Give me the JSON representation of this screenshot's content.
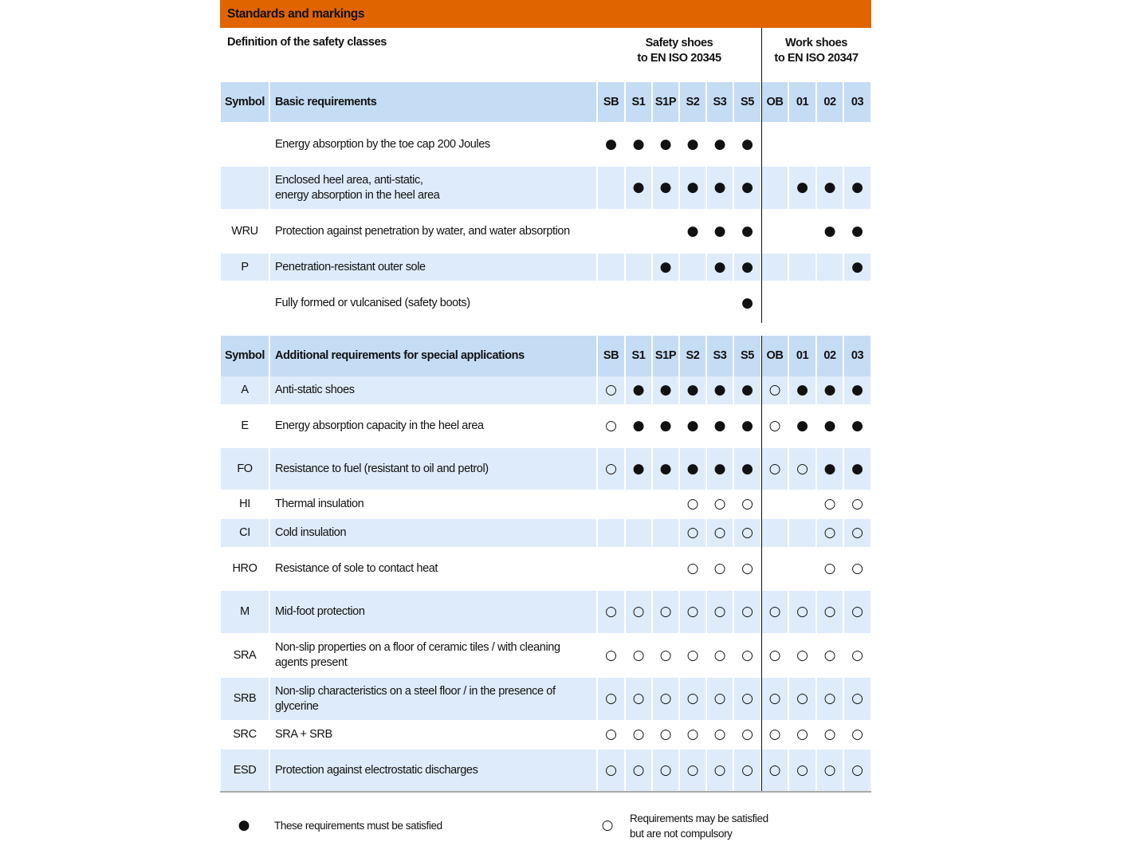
{
  "header": {
    "title": "Standards and markings",
    "subtitle": "Definition of the safety classes",
    "groups": [
      "Safety shoes\nto EN ISO 20345",
      "Work shoes\nto EN ISO 20347"
    ]
  },
  "tables": [
    {
      "header": {
        "symbol": "Symbol",
        "requirement": "Basic requirements",
        "classes": [
          "SB",
          "S1",
          "S1P",
          "S2",
          "S3",
          "S5",
          "OB",
          "01",
          "02",
          "03"
        ]
      },
      "rows": [
        {
          "symbol": null,
          "requirement": "Energy absorption by the toe cap 200 Joules",
          "marks": [
            "●",
            "●",
            "●",
            "●",
            "●",
            "●",
            null,
            null,
            null,
            null
          ]
        },
        {
          "symbol": null,
          "requirement": "Enclosed heel area, anti-static,\nenergy absorption in the heel area",
          "marks": [
            null,
            "●",
            "●",
            "●",
            "●",
            "●",
            null,
            "●",
            "●",
            "●"
          ]
        },
        {
          "symbol": "WRU",
          "requirement": "Protection against penetration by water, and water absorption",
          "marks": [
            null,
            null,
            null,
            "●",
            "●",
            "●",
            null,
            null,
            "●",
            "●"
          ]
        },
        {
          "symbol": "P",
          "requirement": "Penetration-resistant outer sole",
          "marks": [
            null,
            null,
            "●",
            null,
            "●",
            "●",
            null,
            null,
            null,
            "●"
          ]
        },
        {
          "symbol": null,
          "requirement": "Fully formed or vulcanised (safety boots)",
          "marks": [
            null,
            null,
            null,
            null,
            null,
            "●",
            null,
            null,
            null,
            null
          ]
        }
      ]
    },
    {
      "header": {
        "symbol": "Symbol",
        "requirement": "Additional requirements for special applications",
        "classes": [
          "SB",
          "S1",
          "S1P",
          "S2",
          "S3",
          "S5",
          "OB",
          "01",
          "02",
          "03"
        ]
      },
      "rows": [
        {
          "symbol": "A",
          "requirement": "Anti-static shoes",
          "marks": [
            "○",
            "●",
            "●",
            "●",
            "●",
            "●",
            "○",
            "●",
            "●",
            "●"
          ]
        },
        {
          "symbol": "E",
          "requirement": "Energy absorption capacity in the heel area",
          "marks": [
            "○",
            "●",
            "●",
            "●",
            "●",
            "●",
            "○",
            "●",
            "●",
            "●"
          ]
        },
        {
          "symbol": "FO",
          "requirement": "Resistance to fuel (resistant to oil and petrol)",
          "marks": [
            "○",
            "●",
            "●",
            "●",
            "●",
            "●",
            "○",
            "○",
            "●",
            "●"
          ]
        },
        {
          "symbol": "HI",
          "requirement": "Thermal insulation",
          "marks": [
            null,
            null,
            null,
            "○",
            "○",
            "○",
            null,
            null,
            "○",
            "○"
          ]
        },
        {
          "symbol": "CI",
          "requirement": "Cold insulation",
          "marks": [
            null,
            null,
            null,
            "○",
            "○",
            "○",
            null,
            null,
            "○",
            "○"
          ]
        },
        {
          "symbol": "HRO",
          "requirement": "Resistance of sole to contact heat",
          "marks": [
            null,
            null,
            null,
            "○",
            "○",
            "○",
            null,
            null,
            "○",
            "○"
          ]
        },
        {
          "symbol": "M",
          "requirement": "Mid-foot protection",
          "marks": [
            "○",
            "○",
            "○",
            "○",
            "○",
            "○",
            "○",
            "○",
            "○",
            "○"
          ]
        },
        {
          "symbol": "SRA",
          "requirement": "Non-slip properties on a floor of ceramic tiles / with cleaning\nagents present",
          "marks": [
            "○",
            "○",
            "○",
            "○",
            "○",
            "○",
            "○",
            "○",
            "○",
            "○"
          ]
        },
        {
          "symbol": "SRB",
          "requirement": "Non-slip characteristics on a steel floor / in the presence of\nglycerine",
          "marks": [
            "○",
            "○",
            "○",
            "○",
            "○",
            "○",
            "○",
            "○",
            "○",
            "○"
          ]
        },
        {
          "symbol": "SRC",
          "requirement": "SRA + SRB",
          "marks": [
            "○",
            "○",
            "○",
            "○",
            "○",
            "○",
            "○",
            "○",
            "○",
            "○"
          ]
        },
        {
          "symbol": "ESD",
          "requirement": "Protection against electrostatic discharges",
          "marks": [
            "○",
            "○",
            "○",
            "○",
            "○",
            "○",
            "○",
            "○",
            "○",
            "○"
          ]
        }
      ]
    }
  ],
  "legend": [
    {
      "symbol": "●",
      "text": "These requirements must be satisfied"
    },
    {
      "symbol": "○",
      "text": "Requirements may be satisfied\nbut are not compulsory"
    }
  ]
}
